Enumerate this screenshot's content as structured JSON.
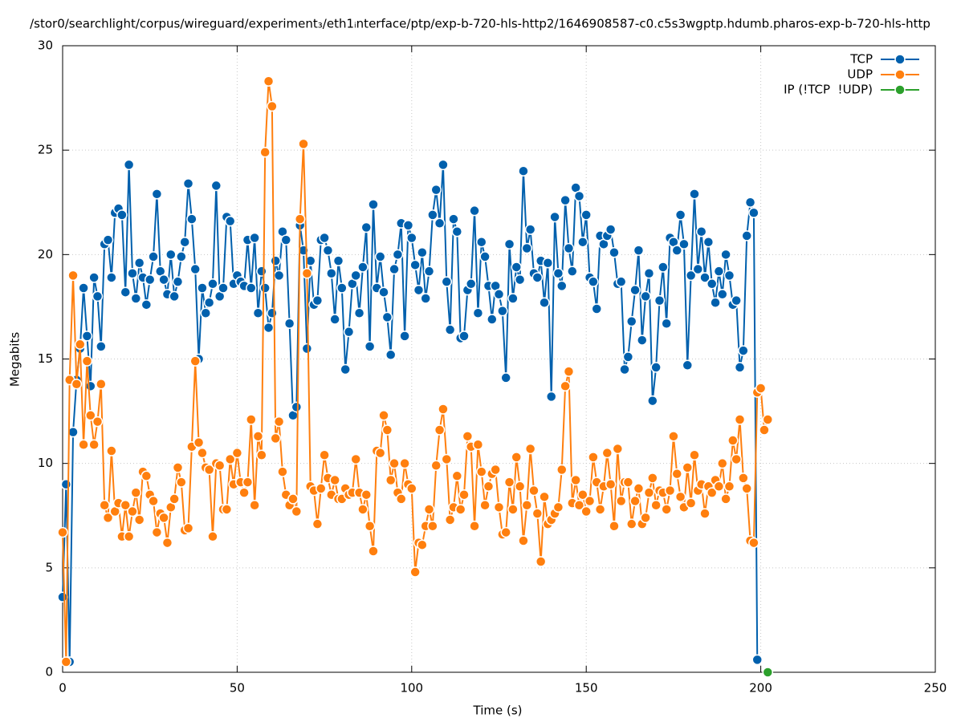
{
  "chart_data": {
    "type": "line",
    "title": "/stor0/searchlight/corpus/wireguard/experiment₃/eth1ᵢnterface/ptp/exp-b-720-hls-http2/1646908587-c0.c5s3wgptp.hdumb.pharos-exp-b-720-hls-http",
    "x_label": "Time (s)",
    "y_label": "Megabits",
    "xlim": [
      0,
      250
    ],
    "ylim": [
      0,
      30
    ],
    "xticks": [
      0,
      50,
      100,
      150,
      200,
      250
    ],
    "yticks": [
      0,
      5,
      10,
      15,
      20,
      25,
      30
    ],
    "grid": true,
    "legend": "top-right",
    "x": [
      0,
      1,
      2,
      3,
      4,
      5,
      6,
      7,
      8,
      9,
      10,
      11,
      12,
      13,
      14,
      15,
      16,
      17,
      18,
      19,
      20,
      21,
      22,
      23,
      24,
      25,
      26,
      27,
      28,
      29,
      30,
      31,
      32,
      33,
      34,
      35,
      36,
      37,
      38,
      39,
      40,
      41,
      42,
      43,
      44,
      45,
      46,
      47,
      48,
      49,
      50,
      51,
      52,
      53,
      54,
      55,
      56,
      57,
      58,
      59,
      60,
      61,
      62,
      63,
      64,
      65,
      66,
      67,
      68,
      69,
      70,
      71,
      72,
      73,
      74,
      75,
      76,
      77,
      78,
      79,
      80,
      81,
      82,
      83,
      84,
      85,
      86,
      87,
      88,
      89,
      90,
      91,
      92,
      93,
      94,
      95,
      96,
      97,
      98,
      99,
      100,
      101,
      102,
      103,
      104,
      105,
      106,
      107,
      108,
      109,
      110,
      111,
      112,
      113,
      114,
      115,
      116,
      117,
      118,
      119,
      120,
      121,
      122,
      123,
      124,
      125,
      126,
      127,
      128,
      129,
      130,
      131,
      132,
      133,
      134,
      135,
      136,
      137,
      138,
      139,
      140,
      141,
      142,
      143,
      144,
      145,
      146,
      147,
      148,
      149,
      150,
      151,
      152,
      153,
      154,
      155,
      156,
      157,
      158,
      159,
      160,
      161,
      162,
      163,
      164,
      165,
      166,
      167,
      168,
      169,
      170,
      171,
      172,
      173,
      174,
      175,
      176,
      177,
      178,
      179,
      180,
      181,
      182,
      183,
      184,
      185,
      186,
      187,
      188,
      189,
      190,
      191,
      192,
      193,
      194,
      195,
      196,
      197,
      198,
      199,
      200,
      201,
      202
    ],
    "series": [
      {
        "name": "TCP",
        "color": "#0060ad",
        "values": [
          3.6,
          9.0,
          0.5,
          11.5,
          14.0,
          15.5,
          18.4,
          16.1,
          13.7,
          18.9,
          18.0,
          15.6,
          20.5,
          20.7,
          18.9,
          22.0,
          22.2,
          21.9,
          18.2,
          24.3,
          19.1,
          17.9,
          19.6,
          18.9,
          17.6,
          18.8,
          19.9,
          22.9,
          19.2,
          18.8,
          18.1,
          20.0,
          18.0,
          18.7,
          19.9,
          20.6,
          23.4,
          21.7,
          19.3,
          15.0,
          18.4,
          17.2,
          17.7,
          18.6,
          23.3,
          18.0,
          18.4,
          21.8,
          21.6,
          18.6,
          19.0,
          18.7,
          18.5,
          20.7,
          18.4,
          20.8,
          17.2,
          19.2,
          18.4,
          16.5,
          17.2,
          19.7,
          19.0,
          21.1,
          20.7,
          16.7,
          12.3,
          12.7,
          21.4,
          20.2,
          15.5,
          19.7,
          17.6,
          17.8,
          20.7,
          20.8,
          20.2,
          19.1,
          16.9,
          19.7,
          18.4,
          14.5,
          16.3,
          18.6,
          19.0,
          17.2,
          19.4,
          21.3,
          15.6,
          22.4,
          18.4,
          19.9,
          18.2,
          17.0,
          15.2,
          19.3,
          20.0,
          21.5,
          16.1,
          21.4,
          20.8,
          19.5,
          18.3,
          20.1,
          17.9,
          19.2,
          21.9,
          23.1,
          21.5,
          24.3,
          18.7,
          16.4,
          21.7,
          21.1,
          16.0,
          16.1,
          18.3,
          18.6,
          22.1,
          17.2,
          20.6,
          19.9,
          18.5,
          16.9,
          18.5,
          18.1,
          17.3,
          14.1,
          20.5,
          17.9,
          19.4,
          18.8,
          24.0,
          20.3,
          21.2,
          19.1,
          18.9,
          19.7,
          17.7,
          19.6,
          13.2,
          21.8,
          19.1,
          18.5,
          22.6,
          20.3,
          19.2,
          23.2,
          22.8,
          20.6,
          21.9,
          18.9,
          18.7,
          17.4,
          20.9,
          20.5,
          20.9,
          21.2,
          20.1,
          18.6,
          18.7,
          14.5,
          15.1,
          16.8,
          18.3,
          20.2,
          15.9,
          18.0,
          19.1,
          13.0,
          14.6,
          17.8,
          19.4,
          16.7,
          20.8,
          20.6,
          20.2,
          21.9,
          20.5,
          14.7,
          19.0,
          22.9,
          19.3,
          21.1,
          18.9,
          20.6,
          18.6,
          17.7,
          19.2,
          18.1,
          20.0,
          19.0,
          17.6,
          17.8,
          14.6,
          15.4,
          20.9,
          22.5,
          22.0,
          0.6,
          null,
          null,
          null
        ]
      },
      {
        "name": "UDP",
        "color": "#ff7f0e",
        "values": [
          6.7,
          0.5,
          14.0,
          19.0,
          13.8,
          15.7,
          10.9,
          14.9,
          12.3,
          10.9,
          12.0,
          13.8,
          8.0,
          7.4,
          10.6,
          7.7,
          8.1,
          6.5,
          8.0,
          6.5,
          7.7,
          8.6,
          7.3,
          9.6,
          9.4,
          8.5,
          8.2,
          6.7,
          7.6,
          7.4,
          6.2,
          7.9,
          8.3,
          9.8,
          9.1,
          6.8,
          6.9,
          10.8,
          14.9,
          11.0,
          10.5,
          9.8,
          9.7,
          6.5,
          10.0,
          9.9,
          7.8,
          7.8,
          10.2,
          9.0,
          10.5,
          9.1,
          8.6,
          9.1,
          12.1,
          8.0,
          11.3,
          10.4,
          24.9,
          28.3,
          27.1,
          11.2,
          12.0,
          9.6,
          8.5,
          8.0,
          8.3,
          7.7,
          21.7,
          25.3,
          19.1,
          8.9,
          8.7,
          7.1,
          8.8,
          10.4,
          9.3,
          8.5,
          9.2,
          8.3,
          8.3,
          8.8,
          8.5,
          8.6,
          10.2,
          8.6,
          7.8,
          8.5,
          7.0,
          5.8,
          10.6,
          10.5,
          12.3,
          11.6,
          9.2,
          10.0,
          8.6,
          8.3,
          10.0,
          9.0,
          8.8,
          4.8,
          6.2,
          6.1,
          7.0,
          7.8,
          7.0,
          9.9,
          11.6,
          12.6,
          10.2,
          7.3,
          7.9,
          9.4,
          7.8,
          8.5,
          11.3,
          10.8,
          7.0,
          10.9,
          9.6,
          8.0,
          8.9,
          9.5,
          9.7,
          7.9,
          6.6,
          6.7,
          9.1,
          7.8,
          10.3,
          8.9,
          6.3,
          8.0,
          10.7,
          8.7,
          7.6,
          5.3,
          8.4,
          7.1,
          7.3,
          7.6,
          7.9,
          9.7,
          13.7,
          14.4,
          8.1,
          9.2,
          8.0,
          8.5,
          7.7,
          8.2,
          10.3,
          9.1,
          7.8,
          8.9,
          10.5,
          9.0,
          7.0,
          10.7,
          8.2,
          9.1,
          9.1,
          7.1,
          8.2,
          8.8,
          7.1,
          7.4,
          8.6,
          9.3,
          8.0,
          8.7,
          8.6,
          7.8,
          8.7,
          11.3,
          9.5,
          8.4,
          7.9,
          9.8,
          8.1,
          10.4,
          8.7,
          9.0,
          7.6,
          8.9,
          8.6,
          9.2,
          8.9,
          10.0,
          8.3,
          8.9,
          11.1,
          10.2,
          12.1,
          9.3,
          8.8,
          6.3,
          6.2,
          13.4,
          13.6,
          11.6,
          12.1
        ]
      },
      {
        "name": "IP (!TCP  !UDP)",
        "color": "#2ca02c",
        "x": [
          202
        ],
        "values": [
          0
        ]
      }
    ]
  }
}
